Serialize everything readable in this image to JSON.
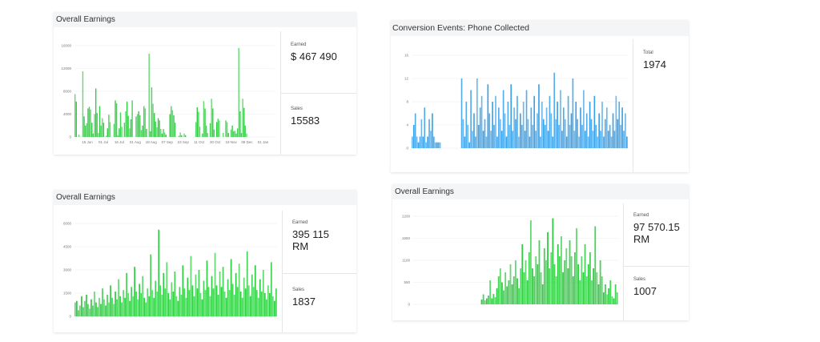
{
  "chart_data": [
    {
      "type": "bar",
      "title": "Overall Earnings",
      "ylim": [
        0,
        16000
      ],
      "yticks": [
        "0",
        "4000",
        "8000",
        "12000",
        "16000"
      ],
      "xticks": [
        "15 Jun",
        "01 Jul",
        "16 Jul",
        "01 Aug",
        "18 Aug",
        "07 Sep",
        "23 Sep",
        "11 Oct",
        "30 Oct",
        "19 Nov",
        "08 Dec",
        "01 Jan"
      ],
      "color": "#2ecc40",
      "values": [
        7500,
        6200,
        0,
        400,
        0,
        0,
        11500,
        3600,
        2000,
        2400,
        5000,
        5300,
        4800,
        2500,
        600,
        4000,
        8500,
        4200,
        700,
        5400,
        2000,
        3300,
        2500,
        0,
        200,
        1500,
        3900,
        2600,
        0,
        0,
        2300,
        6400,
        5900,
        300,
        1500,
        4300,
        1800,
        0,
        2500,
        4500,
        6200,
        3700,
        1500,
        3100,
        6400,
        0,
        0,
        3600,
        4000,
        4500,
        3800,
        1200,
        2000,
        5400,
        5000,
        1400,
        0,
        14600,
        1000,
        8700,
        5800,
        4200,
        2700,
        1700,
        3300,
        2900,
        1400,
        600,
        1400,
        800,
        400,
        0,
        0,
        4000,
        5400,
        4700,
        3800,
        2500,
        0,
        0,
        200,
        800,
        300,
        0,
        600,
        300,
        0,
        0,
        0,
        0,
        0,
        0,
        0,
        2600,
        5200,
        4400,
        1800,
        0,
        600,
        6300,
        5000,
        2000,
        700,
        0,
        2400,
        6700,
        5000,
        1300,
        0,
        2600,
        3200,
        2900,
        0,
        0,
        700,
        0,
        2900,
        2600,
        700,
        0,
        1300,
        2000,
        1000,
        1100,
        600,
        1500,
        15600,
        4500,
        700,
        6700,
        5100,
        2000,
        600,
        0,
        0,
        0,
        0,
        0,
        0,
        0,
        0,
        0,
        0,
        0,
        0,
        0,
        0,
        0,
        0,
        0,
        0,
        0,
        0,
        0
      ]
    },
    {
      "type": "bar",
      "title": "Conversion Events:  Phone Collected",
      "ylim": [
        0,
        16
      ],
      "yticks": [
        "0",
        "4",
        "8",
        "12",
        "16"
      ],
      "xticks": [],
      "color": "#3aa0e8",
      "values": [
        2,
        4,
        6,
        2,
        1,
        2,
        5,
        2,
        7,
        1,
        2,
        5,
        3,
        6,
        2,
        1,
        1,
        1,
        1,
        0,
        0,
        0,
        0,
        0,
        0,
        0,
        0,
        0,
        0,
        0,
        0,
        0,
        12,
        5,
        2,
        8,
        4,
        1,
        10,
        3,
        6,
        2,
        12,
        4,
        7,
        9,
        3,
        5,
        2,
        11,
        6,
        3,
        8,
        4,
        9,
        2,
        7,
        5,
        3,
        10,
        6,
        2,
        8,
        4,
        11,
        3,
        7,
        5,
        9,
        2,
        6,
        4,
        8,
        3,
        10,
        5,
        2,
        7,
        4,
        9,
        3,
        6,
        11,
        2,
        8,
        5,
        4,
        7,
        3,
        9,
        6,
        2,
        13,
        5,
        8,
        4,
        10,
        3,
        7,
        5,
        2,
        9,
        4,
        6,
        12,
        3,
        8,
        5,
        2,
        7,
        4,
        10,
        3,
        6,
        2,
        8,
        5,
        3,
        9,
        4,
        2,
        6,
        3,
        8,
        2,
        5,
        7,
        3,
        4,
        2,
        6,
        3,
        9,
        5,
        8,
        4,
        7,
        3,
        6,
        2
      ]
    },
    {
      "type": "bar",
      "title": "Overall Earnings",
      "ylim": [
        0,
        6000
      ],
      "yticks": [
        "0",
        "1500",
        "3000",
        "4500",
        "6000"
      ],
      "xticks": [],
      "color": "#2ecc40",
      "values": [
        900,
        1000,
        400,
        700,
        1300,
        600,
        1000,
        1400,
        800,
        500,
        1100,
        700,
        1600,
        900,
        600,
        1200,
        800,
        1800,
        1100,
        700,
        1400,
        900,
        2000,
        1200,
        800,
        1600,
        1100,
        2400,
        1300,
        900,
        1700,
        1200,
        2800,
        1500,
        1000,
        1900,
        1300,
        3200,
        1600,
        1100,
        2100,
        1500,
        2600,
        1200,
        900,
        1800,
        1300,
        4000,
        1700,
        1200,
        2300,
        1600,
        5600,
        2000,
        1400,
        2800,
        1800,
        3500,
        1500,
        1100,
        2200,
        1600,
        2900,
        1300,
        1000,
        1900,
        1400,
        3300,
        1800,
        1200,
        2500,
        1700,
        3900,
        2000,
        1300,
        2700,
        1800,
        3000,
        1500,
        1100,
        2300,
        1700,
        3600,
        1900,
        1300,
        2600,
        1800,
        4100,
        2000,
        1400,
        2900,
        1900,
        3200,
        1600,
        1200,
        2400,
        1700,
        3700,
        2100,
        1400,
        2800,
        1900,
        3400,
        1600,
        1200,
        2500,
        1800,
        4200,
        2000,
        1300,
        2700,
        1900,
        3300,
        1700,
        1200,
        2400,
        1600,
        3000,
        1500,
        1100,
        2000,
        1500,
        3500,
        1300,
        1000,
        1800
      ]
    },
    {
      "type": "bar",
      "title": "Overall Earnings",
      "ylim": [
        0,
        2200
      ],
      "yticks": [
        "0",
        "550",
        "1100",
        "1650",
        "2200"
      ],
      "xticks": [],
      "color": "#2ecc40",
      "values": [
        0,
        0,
        0,
        0,
        0,
        0,
        0,
        0,
        0,
        0,
        0,
        0,
        0,
        0,
        0,
        0,
        0,
        0,
        0,
        0,
        0,
        0,
        0,
        0,
        0,
        0,
        0,
        0,
        0,
        0,
        0,
        0,
        0,
        0,
        0,
        0,
        0,
        0,
        0,
        0,
        120,
        250,
        100,
        150,
        220,
        600,
        150,
        260,
        180,
        400,
        700,
        900,
        550,
        350,
        800,
        450,
        600,
        1000,
        500,
        700,
        1100,
        650,
        400,
        900,
        1500,
        800,
        1100,
        600,
        1300,
        2100,
        900,
        700,
        1200,
        1000,
        1600,
        800,
        500,
        1400,
        1100,
        1800,
        900,
        1300,
        2150,
        1000,
        700,
        1500,
        1200,
        1700,
        800,
        1100,
        1400,
        900,
        1600,
        1200,
        700,
        1300,
        1900,
        1000,
        600,
        1200,
        800,
        1500,
        700,
        1000,
        1300,
        600,
        900,
        1950,
        800,
        500,
        1100,
        700,
        300,
        500,
        250,
        400,
        600,
        200,
        150,
        500,
        300
      ]
    }
  ],
  "cards": [
    {
      "title": "Overall Earnings",
      "stats": [
        {
          "label": "Earned",
          "value": "$ 467 490"
        },
        {
          "label": "Sales",
          "value": "15583"
        }
      ]
    },
    {
      "title": "Conversion Events:  Phone Collected",
      "stats": [
        {
          "label": "Total",
          "value": "1974"
        }
      ]
    },
    {
      "title": "Overall Earnings",
      "stats": [
        {
          "label": "Earned",
          "value": "395 115 RM"
        },
        {
          "label": "Sales",
          "value": "1837"
        }
      ]
    },
    {
      "title": "Overall Earnings",
      "stats": [
        {
          "label": "Earned",
          "value": "97 570.15 RM"
        },
        {
          "label": "Sales",
          "value": "1007"
        }
      ]
    }
  ]
}
